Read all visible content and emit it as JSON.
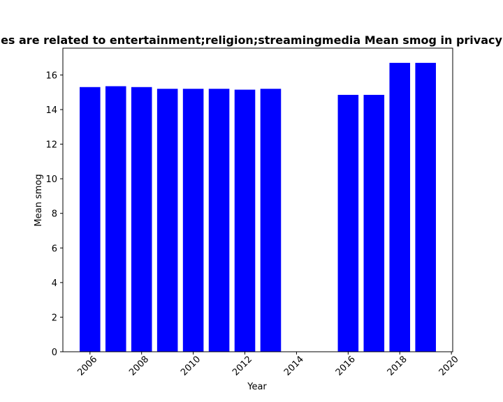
{
  "chart_data": {
    "type": "bar",
    "title": "es are related to entertainment;religion;streamingmedia Mean smog in privacy",
    "xlabel": "Year",
    "ylabel": "Mean smog",
    "x": [
      2006,
      2007,
      2008,
      2009,
      2010,
      2011,
      2012,
      2013,
      2016,
      2017,
      2018,
      2019
    ],
    "values": [
      15.3,
      15.35,
      15.3,
      15.2,
      15.2,
      15.2,
      15.15,
      15.2,
      14.85,
      14.85,
      16.7,
      16.7
    ],
    "xlim": [
      2004.95,
      2020.05
    ],
    "ylim": [
      0,
      17.55
    ],
    "x_ticks": [
      2006,
      2008,
      2010,
      2012,
      2014,
      2016,
      2018,
      2020
    ],
    "y_ticks": [
      0,
      2,
      4,
      6,
      8,
      10,
      12,
      14,
      16
    ],
    "bar_color": "#0000ff",
    "grid": false,
    "x_tick_rotation_deg": 45
  }
}
